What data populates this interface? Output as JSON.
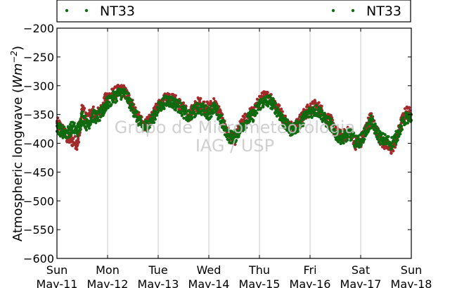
{
  "chart_data": {
    "type": "scatter",
    "ylabel": "Atmospheric longwave (",
    "ylabel_unit_base": "Wm",
    "ylabel_unit_exp": "−2",
    "ylabel_close": ")",
    "ylim": [
      -600,
      -200
    ],
    "yticks": [
      -200,
      -250,
      -300,
      -350,
      -400,
      -450,
      -500,
      -550,
      -600
    ],
    "ytick_labels": [
      "−200",
      "−250",
      "−300",
      "−350",
      "−400",
      "−450",
      "−500",
      "−550",
      "−600"
    ],
    "xlim": [
      0,
      7
    ],
    "xticks": [
      {
        "day": "Sun",
        "date": "May-11"
      },
      {
        "day": "Mon",
        "date": "May-12"
      },
      {
        "day": "Tue",
        "date": "May-13"
      },
      {
        "day": "Wed",
        "date": "May-14"
      },
      {
        "day": "Thu",
        "date": "May-15"
      },
      {
        "day": "Fri",
        "date": "May-16"
      },
      {
        "day": "Sat",
        "date": "May-17"
      },
      {
        "day": "Sun",
        "date": "May-18"
      }
    ],
    "grid": "vertical",
    "legend_placement": "top",
    "legend": [
      {
        "label": "NT33",
        "color": "#0f6b0f"
      },
      {
        "label": "NT33",
        "color": "#0f6b0f"
      }
    ],
    "series": [
      {
        "color": "#a32a2a",
        "points": [
          [
            0.0,
            -365
          ],
          [
            0.1,
            -375
          ],
          [
            0.2,
            -390
          ],
          [
            0.3,
            -395
          ],
          [
            0.4,
            -400
          ],
          [
            0.45,
            -380
          ],
          [
            0.5,
            -340
          ],
          [
            0.6,
            -360
          ],
          [
            0.7,
            -345
          ],
          [
            0.8,
            -350
          ],
          [
            0.9,
            -340
          ],
          [
            0.95,
            -325
          ],
          [
            1.0,
            -320
          ],
          [
            1.1,
            -315
          ],
          [
            1.2,
            -310
          ],
          [
            1.3,
            -308
          ],
          [
            1.4,
            -318
          ],
          [
            1.5,
            -335
          ],
          [
            1.6,
            -355
          ],
          [
            1.7,
            -368
          ],
          [
            1.8,
            -365
          ],
          [
            1.9,
            -352
          ],
          [
            2.0,
            -335
          ],
          [
            2.1,
            -325
          ],
          [
            2.2,
            -320
          ],
          [
            2.3,
            -325
          ],
          [
            2.4,
            -330
          ],
          [
            2.5,
            -340
          ],
          [
            2.6,
            -352
          ],
          [
            2.7,
            -340
          ],
          [
            2.8,
            -330
          ],
          [
            2.9,
            -335
          ],
          [
            3.0,
            -340
          ],
          [
            3.1,
            -330
          ],
          [
            3.2,
            -345
          ],
          [
            3.3,
            -368
          ],
          [
            3.4,
            -385
          ],
          [
            3.5,
            -395
          ],
          [
            3.6,
            -375
          ],
          [
            3.7,
            -360
          ],
          [
            3.8,
            -350
          ],
          [
            3.9,
            -345
          ],
          [
            4.0,
            -325
          ],
          [
            4.1,
            -320
          ],
          [
            4.2,
            -320
          ],
          [
            4.3,
            -330
          ],
          [
            4.4,
            -345
          ],
          [
            4.5,
            -360
          ],
          [
            4.6,
            -372
          ],
          [
            4.7,
            -370
          ],
          [
            4.8,
            -360
          ],
          [
            4.9,
            -348
          ],
          [
            5.0,
            -340
          ],
          [
            5.1,
            -335
          ],
          [
            5.2,
            -340
          ],
          [
            5.3,
            -355
          ],
          [
            5.4,
            -360
          ],
          [
            5.5,
            -380
          ],
          [
            5.6,
            -388
          ],
          [
            5.7,
            -385
          ],
          [
            5.8,
            -380
          ],
          [
            5.9,
            -400
          ],
          [
            6.0,
            -398
          ],
          [
            6.1,
            -375
          ],
          [
            6.2,
            -355
          ],
          [
            6.3,
            -375
          ],
          [
            6.4,
            -395
          ],
          [
            6.5,
            -402
          ],
          [
            6.6,
            -410
          ],
          [
            6.7,
            -395
          ],
          [
            6.8,
            -365
          ],
          [
            6.9,
            -345
          ],
          [
            7.0,
            -350
          ]
        ]
      },
      {
        "color": "#0f6b0f",
        "points": [
          [
            0.0,
            -370
          ],
          [
            0.1,
            -380
          ],
          [
            0.2,
            -382
          ],
          [
            0.3,
            -372
          ],
          [
            0.4,
            -378
          ],
          [
            0.45,
            -370
          ],
          [
            0.5,
            -352
          ],
          [
            0.6,
            -370
          ],
          [
            0.7,
            -352
          ],
          [
            0.8,
            -355
          ],
          [
            0.9,
            -346
          ],
          [
            0.95,
            -335
          ],
          [
            1.0,
            -330
          ],
          [
            1.1,
            -322
          ],
          [
            1.2,
            -315
          ],
          [
            1.3,
            -312
          ],
          [
            1.4,
            -322
          ],
          [
            1.5,
            -340
          ],
          [
            1.6,
            -358
          ],
          [
            1.7,
            -372
          ],
          [
            1.8,
            -368
          ],
          [
            1.9,
            -356
          ],
          [
            2.0,
            -340
          ],
          [
            2.1,
            -330
          ],
          [
            2.2,
            -325
          ],
          [
            2.3,
            -330
          ],
          [
            2.4,
            -335
          ],
          [
            2.5,
            -345
          ],
          [
            2.6,
            -355
          ],
          [
            2.7,
            -345
          ],
          [
            2.8,
            -338
          ],
          [
            2.9,
            -342
          ],
          [
            3.0,
            -348
          ],
          [
            3.1,
            -338
          ],
          [
            3.2,
            -352
          ],
          [
            3.3,
            -372
          ],
          [
            3.4,
            -388
          ],
          [
            3.5,
            -390
          ],
          [
            3.6,
            -378
          ],
          [
            3.7,
            -366
          ],
          [
            3.8,
            -356
          ],
          [
            3.9,
            -350
          ],
          [
            4.0,
            -332
          ],
          [
            4.1,
            -328
          ],
          [
            4.2,
            -326
          ],
          [
            4.3,
            -336
          ],
          [
            4.4,
            -350
          ],
          [
            4.5,
            -366
          ],
          [
            4.6,
            -376
          ],
          [
            4.7,
            -374
          ],
          [
            4.8,
            -366
          ],
          [
            4.9,
            -354
          ],
          [
            5.0,
            -346
          ],
          [
            5.1,
            -342
          ],
          [
            5.2,
            -346
          ],
          [
            5.3,
            -360
          ],
          [
            5.4,
            -366
          ],
          [
            5.5,
            -384
          ],
          [
            5.6,
            -390
          ],
          [
            5.7,
            -388
          ],
          [
            5.8,
            -385
          ],
          [
            5.9,
            -398
          ],
          [
            6.0,
            -395
          ],
          [
            6.1,
            -380
          ],
          [
            6.2,
            -362
          ],
          [
            6.3,
            -378
          ],
          [
            6.4,
            -392
          ],
          [
            6.5,
            -395
          ],
          [
            6.6,
            -400
          ],
          [
            6.7,
            -390
          ],
          [
            6.8,
            -370
          ],
          [
            6.9,
            -355
          ],
          [
            7.0,
            -360
          ]
        ]
      }
    ]
  },
  "watermark": {
    "line1": "Grupo de Micrometeorologia",
    "line2": "IAG / USP"
  }
}
